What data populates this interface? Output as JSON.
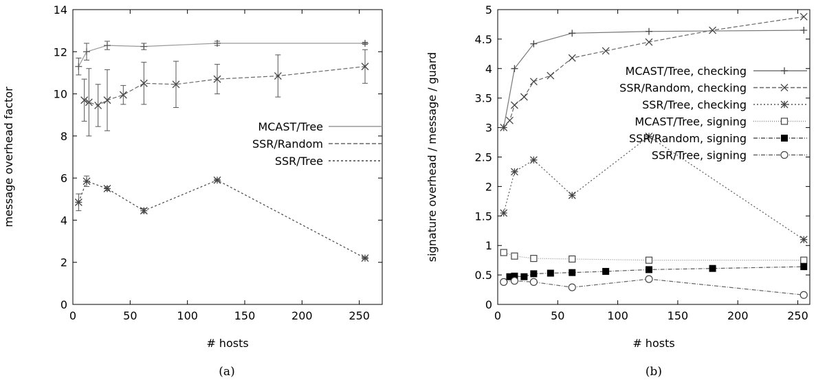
{
  "chart_data": [
    {
      "id": "a",
      "type": "line",
      "caption": "(a)",
      "xlabel": "# hosts",
      "ylabel": "message overhead factor",
      "xlim": [
        0,
        270
      ],
      "ylim": [
        0,
        14
      ],
      "xticks": [
        0,
        50,
        100,
        150,
        200,
        250
      ],
      "yticks": [
        0,
        2,
        4,
        6,
        8,
        10,
        12,
        14
      ],
      "legend_position": "right",
      "series": [
        {
          "name": "MCAST/Tree",
          "color": "#999999",
          "dash": "solid",
          "marker": "plus",
          "x": [
            5,
            12,
            30,
            62,
            126,
            255
          ],
          "y": [
            11.3,
            12.0,
            12.3,
            12.25,
            12.4,
            12.4
          ],
          "err": [
            0.4,
            0.4,
            0.2,
            0.15,
            0.1,
            0.05
          ]
        },
        {
          "name": "SSR/Random",
          "color": "#666666",
          "dash": "6,3",
          "marker": "x",
          "x": [
            10,
            14,
            22,
            30,
            44,
            62,
            90,
            126,
            179,
            255
          ],
          "y": [
            9.7,
            9.6,
            9.45,
            9.7,
            9.95,
            10.5,
            10.45,
            10.7,
            10.85,
            11.3
          ],
          "err": [
            1.0,
            1.6,
            1.0,
            1.45,
            0.45,
            1.0,
            1.1,
            0.7,
            1.0,
            0.8
          ]
        },
        {
          "name": "SSR/Tree",
          "color": "#444444",
          "dash": "3,3",
          "marker": "star",
          "x": [
            5,
            12,
            30,
            62,
            126,
            255
          ],
          "y": [
            4.85,
            5.85,
            5.5,
            4.45,
            5.9,
            2.2
          ],
          "err": [
            0.4,
            0.25,
            0.1,
            0.1,
            0.05,
            0.05
          ]
        }
      ]
    },
    {
      "id": "b",
      "type": "line",
      "caption": "(b)",
      "xlabel": "# hosts",
      "ylabel": "signature overhead / message / guard",
      "xlim": [
        0,
        260
      ],
      "ylim": [
        0,
        5
      ],
      "xticks": [
        0,
        50,
        100,
        150,
        200,
        250
      ],
      "yticks": [
        0,
        0.5,
        1,
        1.5,
        2,
        2.5,
        3,
        3.5,
        4,
        4.5,
        5
      ],
      "legend_position": "right",
      "series": [
        {
          "name": "MCAST/Tree, checking",
          "color": "#777777",
          "dash": "solid",
          "marker": "plus",
          "x": [
            5,
            14,
            30,
            62,
            126,
            255
          ],
          "y": [
            3.0,
            4.0,
            4.42,
            4.6,
            4.63,
            4.65
          ]
        },
        {
          "name": "SSR/Random, checking",
          "color": "#666666",
          "dash": "6,3",
          "marker": "x",
          "x": [
            5,
            10,
            14,
            22,
            30,
            44,
            62,
            90,
            126,
            179,
            255
          ],
          "y": [
            3.0,
            3.12,
            3.38,
            3.52,
            3.78,
            3.88,
            4.18,
            4.3,
            4.45,
            4.65,
            4.88
          ]
        },
        {
          "name": "SSR/Tree, checking",
          "color": "#555555",
          "dash": "2,3",
          "marker": "star",
          "x": [
            5,
            14,
            30,
            62,
            126,
            255
          ],
          "y": [
            1.55,
            2.25,
            2.45,
            1.85,
            2.85,
            1.1
          ]
        },
        {
          "name": "MCAST/Tree, signing",
          "color": "#888888",
          "dash": "1,2",
          "marker": "square-open",
          "x": [
            5,
            14,
            30,
            62,
            126,
            255
          ],
          "y": [
            0.88,
            0.82,
            0.78,
            0.77,
            0.75,
            0.75
          ]
        },
        {
          "name": "SSR/Random, signing",
          "color": "#555555",
          "dash": "6,2,1,2",
          "marker": "square-filled",
          "x": [
            10,
            14,
            22,
            30,
            44,
            62,
            90,
            126,
            179,
            255
          ],
          "y": [
            0.47,
            0.48,
            0.47,
            0.52,
            0.53,
            0.54,
            0.56,
            0.59,
            0.61,
            0.64
          ]
        },
        {
          "name": "SSR/Tree, signing",
          "color": "#666666",
          "dash": "6,2,1,2",
          "marker": "circle-open",
          "x": [
            5,
            14,
            30,
            62,
            126,
            255
          ],
          "y": [
            0.38,
            0.4,
            0.38,
            0.29,
            0.43,
            0.16
          ]
        }
      ]
    }
  ]
}
